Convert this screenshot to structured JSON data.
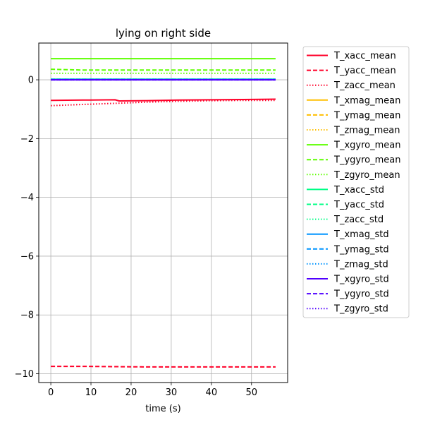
{
  "chart_data": {
    "type": "line",
    "title": "lying on right side",
    "xlabel": "time (s)",
    "ylabel": "",
    "xlim": [
      -3,
      59
    ],
    "ylim": [
      -10.3,
      1.25
    ],
    "xticks": [
      0,
      10,
      20,
      30,
      40,
      50
    ],
    "yticks": [
      -10,
      -8,
      -6,
      -4,
      -2,
      0
    ],
    "xtick_labels": [
      "0",
      "10",
      "20",
      "30",
      "40",
      "50"
    ],
    "ytick_labels": [
      "−10",
      "−8",
      "−6",
      "−4",
      "−2",
      "0"
    ],
    "grid": true,
    "legend_position": "outside-right",
    "series": [
      {
        "name": "T_xacc_mean",
        "color": "#ff0029",
        "dash": "solid",
        "x": [
          0,
          8,
          16,
          17,
          24,
          32,
          40,
          48,
          56
        ],
        "y": [
          -0.7,
          -0.69,
          -0.68,
          -0.72,
          -0.71,
          -0.69,
          -0.68,
          -0.67,
          -0.66
        ]
      },
      {
        "name": "T_yacc_mean",
        "color": "#ff0029",
        "dash": "dashed",
        "x": [
          0,
          8,
          16,
          24,
          32,
          40,
          48,
          56
        ],
        "y": [
          -9.75,
          -9.75,
          -9.76,
          -9.77,
          -9.77,
          -9.77,
          -9.77,
          -9.77
        ]
      },
      {
        "name": "T_zacc_mean",
        "color": "#ff0029",
        "dash": "dotted",
        "x": [
          0,
          8,
          16,
          24,
          32,
          40,
          48,
          56
        ],
        "y": [
          -0.88,
          -0.84,
          -0.8,
          -0.76,
          -0.73,
          -0.71,
          -0.7,
          -0.7
        ]
      },
      {
        "name": "T_xmag_mean",
        "color": "#ffbf00",
        "dash": "solid",
        "x": [],
        "y": []
      },
      {
        "name": "T_ymag_mean",
        "color": "#ffbf00",
        "dash": "dashed",
        "x": [],
        "y": []
      },
      {
        "name": "T_zmag_mean",
        "color": "#ffbf00",
        "dash": "dotted",
        "x": [],
        "y": []
      },
      {
        "name": "T_xgyro_mean",
        "color": "#5eff00",
        "dash": "solid",
        "x": [
          0,
          56
        ],
        "y": [
          0.72,
          0.72
        ]
      },
      {
        "name": "T_ygyro_mean",
        "color": "#5eff00",
        "dash": "dashed",
        "x": [
          0,
          8,
          56
        ],
        "y": [
          0.36,
          0.33,
          0.33
        ]
      },
      {
        "name": "T_zgyro_mean",
        "color": "#5eff00",
        "dash": "dotted",
        "x": [
          0,
          56
        ],
        "y": [
          0.22,
          0.22
        ]
      },
      {
        "name": "T_xacc_std",
        "color": "#00ff86",
        "dash": "solid",
        "x": [
          0,
          56
        ],
        "y": [
          0.02,
          0.02
        ]
      },
      {
        "name": "T_yacc_std",
        "color": "#00ff86",
        "dash": "dashed",
        "x": [
          0,
          56
        ],
        "y": [
          0.02,
          0.02
        ]
      },
      {
        "name": "T_zacc_std",
        "color": "#00ff86",
        "dash": "dotted",
        "x": [
          0,
          56
        ],
        "y": [
          0.02,
          0.02
        ]
      },
      {
        "name": "T_xmag_std",
        "color": "#0094ff",
        "dash": "solid",
        "x": [
          0,
          56
        ],
        "y": [
          0.01,
          0.01
        ]
      },
      {
        "name": "T_ymag_std",
        "color": "#0094ff",
        "dash": "dashed",
        "x": [
          0,
          56
        ],
        "y": [
          0.01,
          0.01
        ]
      },
      {
        "name": "T_zmag_std",
        "color": "#0094ff",
        "dash": "dotted",
        "x": [
          0,
          56
        ],
        "y": [
          0.01,
          0.01
        ]
      },
      {
        "name": "T_xgyro_std",
        "color": "#5000ff",
        "dash": "solid",
        "x": [
          0,
          56
        ],
        "y": [
          0.0,
          0.0
        ]
      },
      {
        "name": "T_ygyro_std",
        "color": "#5000ff",
        "dash": "dashed",
        "x": [
          0,
          56
        ],
        "y": [
          0.0,
          0.0
        ]
      },
      {
        "name": "T_zgyro_std",
        "color": "#5000ff",
        "dash": "dotted",
        "x": [
          0,
          56
        ],
        "y": [
          0.0,
          0.0
        ]
      }
    ]
  }
}
